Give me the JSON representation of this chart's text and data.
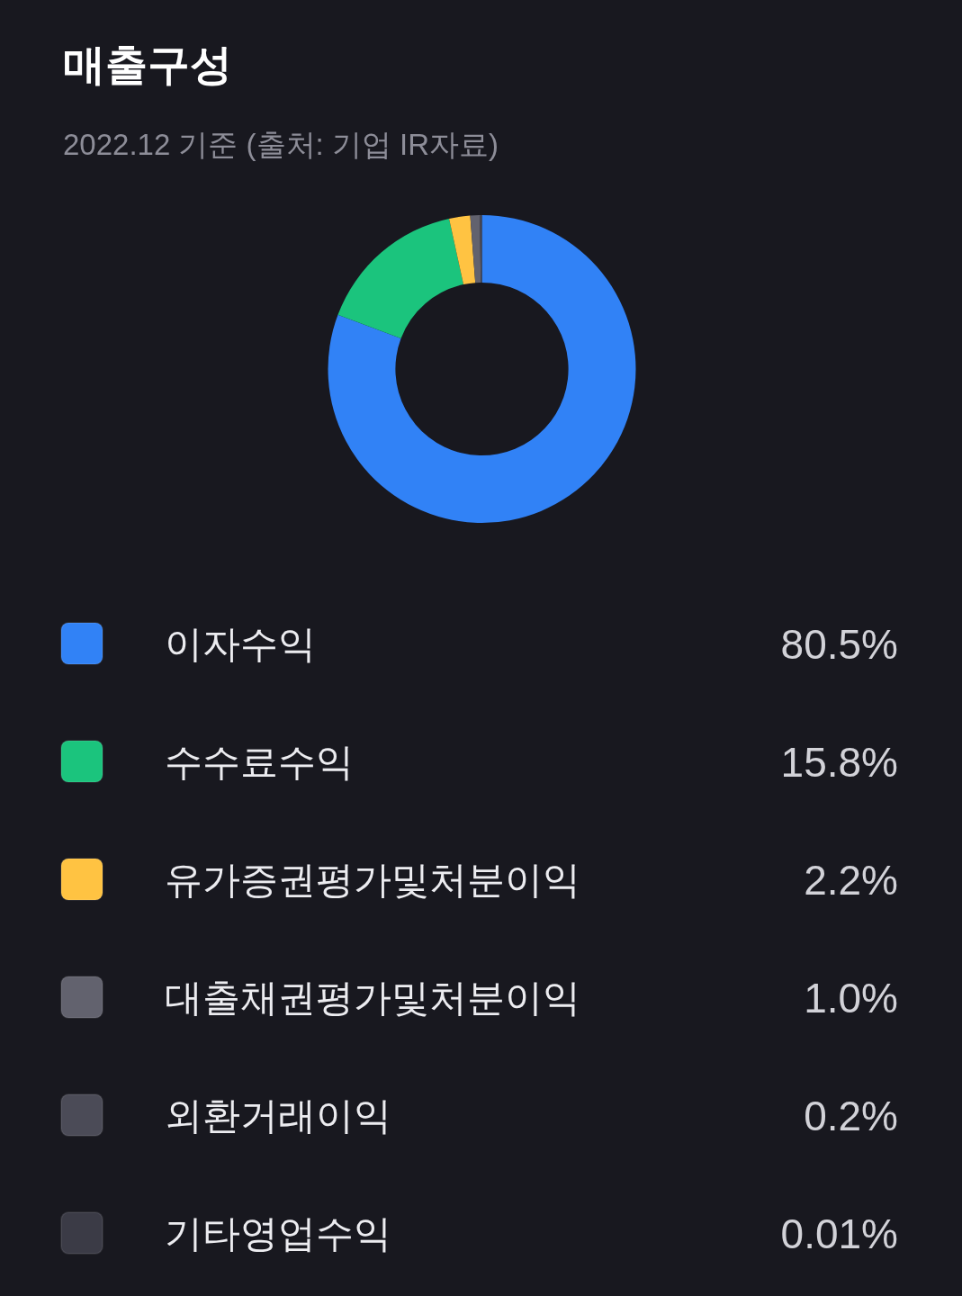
{
  "chart_data": {
    "type": "donut",
    "title": "매출구성",
    "subtitle": "2022.12 기준 (출처: 기업 IR자료)",
    "categories": [
      "이자수익",
      "수수료수익",
      "유가증권평가및처분이익",
      "대출채권평가및처분이익",
      "외환거래이익",
      "기타영업수익"
    ],
    "values": [
      80.5,
      15.8,
      2.2,
      1.0,
      0.2,
      0.01
    ],
    "colors": [
      "#3182f6",
      "#1bc47d",
      "#ffc342",
      "#62626e",
      "#4b4b57",
      "#3b3b46"
    ],
    "value_labels": [
      "80.5%",
      "15.8%",
      "2.2%",
      "1.0%",
      "0.2%",
      "0.01%"
    ],
    "legend": "bottom"
  }
}
